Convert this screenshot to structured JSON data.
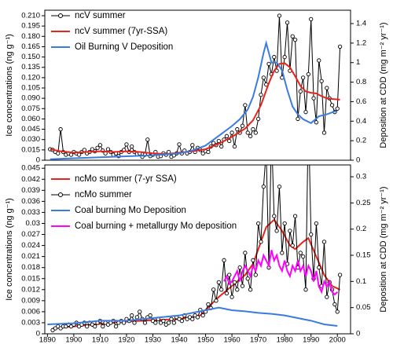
{
  "chart_data": [
    {
      "type": "line",
      "ylabel": "Ice concentrations (ng g⁻¹)",
      "y2label": "Deposition at CDD (mg m⁻² yr⁻¹)",
      "xlim": [
        1889,
        2005
      ],
      "ylim": [
        0,
        0.218
      ],
      "y2lim": [
        0,
        1.537
      ],
      "yticks": [
        0,
        0.015,
        {
          "value": 0.03,
          "label": "0.030"
        },
        0.045,
        {
          "value": 0.06,
          "label": "0.060"
        },
        0.075,
        {
          "value": 0.09,
          "label": "0.090"
        },
        0.105,
        {
          "value": 0.12,
          "label": "0.120"
        },
        0.135,
        {
          "value": 0.15,
          "label": "0.150"
        },
        0.165,
        {
          "value": 0.18,
          "label": "0.180"
        },
        0.195,
        {
          "value": 0.21,
          "label": "0.210"
        }
      ],
      "y2ticks": [
        0,
        0.2,
        0.4,
        0.6,
        0.8,
        1,
        1.2,
        1.4
      ],
      "legend": "upper left",
      "series": [
        {
          "name": "ncV summer",
          "color": "#000000",
          "marker": "circle",
          "x": [
            1891,
            1892,
            1893,
            1894,
            1895,
            1896,
            1897,
            1898,
            1899,
            1900,
            1901,
            1902,
            1903,
            1904,
            1905,
            1906,
            1907,
            1908,
            1909,
            1910,
            1911,
            1912,
            1913,
            1914,
            1915,
            1916,
            1917,
            1918,
            1919,
            1920,
            1921,
            1922,
            1923,
            1924,
            1925,
            1926,
            1927,
            1928,
            1929,
            1930,
            1931,
            1932,
            1933,
            1934,
            1935,
            1936,
            1937,
            1938,
            1939,
            1940,
            1941,
            1942,
            1943,
            1944,
            1945,
            1946,
            1947,
            1948,
            1949,
            1950,
            1951,
            1952,
            1953,
            1954,
            1955,
            1956,
            1957,
            1958,
            1959,
            1960,
            1961,
            1962,
            1963,
            1964,
            1965,
            1966,
            1967,
            1968,
            1969,
            1970,
            1971,
            1972,
            1973,
            1974,
            1975,
            1976,
            1977,
            1978,
            1979,
            1980,
            1981,
            1982,
            1983,
            1984,
            1985,
            1986,
            1987,
            1988,
            1989,
            1990,
            1991,
            1992,
            1993,
            1994,
            1995,
            1996,
            1997,
            1998,
            1999,
            2000,
            2001
          ],
          "values": [
            0.016,
            0.015,
            0.012,
            0.01,
            0.045,
            0.012,
            0.008,
            0.01,
            0.008,
            0.012,
            0.01,
            0.008,
            0.012,
            0.015,
            0.01,
            0.012,
            0.016,
            0.013,
            0.018,
            0.022,
            0.014,
            0.01,
            0.016,
            0.012,
            0.008,
            0.01,
            0.006,
            0.012,
            0.015,
            0.023,
            0.012,
            0.02,
            0.012,
            0.009,
            0.01,
            0.005,
            0.008,
            0.03,
            0.006,
            0.008,
            0.012,
            0.005,
            0.006,
            0.01,
            0.008,
            0.012,
            0.005,
            0.007,
            0.01,
            0.023,
            0.01,
            0.014,
            0.01,
            0.012,
            0.022,
            0.012,
            0.018,
            0.015,
            0.01,
            0.013,
            0.012,
            0.02,
            0.025,
            0.022,
            0.028,
            0.02,
            0.03,
            0.035,
            0.028,
            0.04,
            0.02,
            0.045,
            0.04,
            0.05,
            0.08,
            0.04,
            0.035,
            0.045,
            0.04,
            0.06,
            0.095,
            0.12,
            0.11,
            0.14,
            0.125,
            0.15,
            0.13,
            0.21,
            0.12,
            0.15,
            0.2,
            0.13,
            0.18,
            0.175,
            0.06,
            0.1,
            0.12,
            0.07,
            0.125,
            0.205,
            0.09,
            0.055,
            0.145,
            0.115,
            0.04,
            0.105,
            0.09,
            0.08,
            0.07,
            0.075,
            0.165
          ]
        },
        {
          "name": "ncV summer (7yr-SSA)",
          "color": "#e8231c",
          "x": [
            1891,
            1895,
            1900,
            1905,
            1910,
            1915,
            1920,
            1925,
            1930,
            1935,
            1940,
            1945,
            1950,
            1955,
            1960,
            1965,
            1968,
            1971,
            1974,
            1976,
            1978,
            1980,
            1982,
            1984,
            1986,
            1988,
            1990,
            1992,
            1994,
            1996,
            1998,
            2001
          ],
          "values": [
            0.016,
            0.013,
            0.011,
            0.012,
            0.013,
            0.012,
            0.013,
            0.012,
            0.01,
            0.009,
            0.011,
            0.013,
            0.016,
            0.024,
            0.034,
            0.046,
            0.058,
            0.08,
            0.112,
            0.13,
            0.14,
            0.141,
            0.135,
            0.122,
            0.108,
            0.1,
            0.098,
            0.097,
            0.093,
            0.09,
            0.089,
            0.088
          ]
        },
        {
          "name": "Oil Burning V Deposition",
          "color": "#3a7be0",
          "axis": "y2",
          "x": [
            1891,
            1900,
            1910,
            1920,
            1930,
            1940,
            1945,
            1950,
            1955,
            1960,
            1963,
            1966,
            1968,
            1970,
            1972,
            1973,
            1975,
            1977,
            1979,
            1981,
            1983,
            1985,
            1987,
            1990,
            1993,
            1996,
            1999,
            2000
          ],
          "values": [
            0.01,
            0.02,
            0.03,
            0.04,
            0.05,
            0.07,
            0.1,
            0.15,
            0.25,
            0.35,
            0.42,
            0.52,
            0.65,
            0.85,
            1.1,
            1.2,
            1.0,
            1.0,
            0.92,
            0.72,
            0.55,
            0.47,
            0.42,
            0.38,
            0.45,
            0.47,
            0.5,
            0.5
          ]
        }
      ]
    },
    {
      "type": "line",
      "ylabel": "Ice concentrations (ng g⁻¹)",
      "y2label": "Deposition at CDD (mg m⁻² yr⁻¹)",
      "xlim": [
        1889,
        2005
      ],
      "ylim": [
        0,
        0.0459
      ],
      "y2lim": [
        0,
        0.3226
      ],
      "xticks": [
        1890,
        1900,
        1910,
        1920,
        1930,
        1940,
        1950,
        1960,
        1970,
        1980,
        1990,
        2000
      ],
      "yticks": [
        0,
        0.003,
        0.006,
        0.009,
        0.012,
        0.015,
        0.018,
        0.021,
        0.024,
        0.027,
        0.03,
        0.033,
        0.036,
        0.039,
        0.042,
        0.045
      ],
      "y2ticks": [
        0,
        0.05,
        0.1,
        0.15,
        0.2,
        0.25,
        0.3
      ],
      "legend": "upper left",
      "series": [
        {
          "name": "ncMo summer (7-yr SSA)",
          "color": "#e8231c",
          "x": [
            1892,
            1900,
            1910,
            1920,
            1930,
            1940,
            1948,
            1950,
            1955,
            1960,
            1965,
            1968,
            1970,
            1973,
            1976,
            1979,
            1982,
            1984,
            1987,
            1989,
            1992,
            1995,
            1998,
            2001
          ],
          "values": [
            0.0015,
            0.002,
            0.0027,
            0.0033,
            0.0037,
            0.004,
            0.005,
            0.0065,
            0.01,
            0.013,
            0.016,
            0.019,
            0.023,
            0.029,
            0.031,
            0.028,
            0.024,
            0.023,
            0.025,
            0.026,
            0.021,
            0.016,
            0.013,
            0.012
          ]
        },
        {
          "name": "ncMo summer",
          "color": "#000000",
          "marker": "circle",
          "x": [
            1892,
            1893,
            1894,
            1895,
            1896,
            1897,
            1898,
            1899,
            1900,
            1901,
            1902,
            1903,
            1904,
            1905,
            1906,
            1907,
            1908,
            1909,
            1910,
            1911,
            1912,
            1913,
            1914,
            1915,
            1916,
            1917,
            1918,
            1919,
            1920,
            1921,
            1922,
            1923,
            1924,
            1925,
            1926,
            1927,
            1928,
            1929,
            1930,
            1931,
            1932,
            1933,
            1934,
            1935,
            1936,
            1937,
            1938,
            1939,
            1940,
            1941,
            1942,
            1943,
            1944,
            1945,
            1946,
            1947,
            1948,
            1949,
            1950,
            1951,
            1952,
            1953,
            1954,
            1955,
            1956,
            1957,
            1958,
            1959,
            1960,
            1961,
            1962,
            1963,
            1964,
            1965,
            1966,
            1967,
            1968,
            1969,
            1970,
            1971,
            1972,
            1973,
            1974,
            1975,
            1976,
            1977,
            1978,
            1979,
            1980,
            1981,
            1982,
            1983,
            1984,
            1985,
            1986,
            1987,
            1988,
            1989,
            1990,
            1991,
            1992,
            1993,
            1994,
            1995,
            1996,
            1997,
            1998,
            1999,
            2000,
            2001
          ],
          "values": [
            0.001,
            0.0015,
            0.002,
            0.0015,
            0.002,
            0.002,
            0.0025,
            0.002,
            0.0025,
            0.003,
            0.002,
            0.0025,
            0.003,
            0.002,
            0.003,
            0.0025,
            0.002,
            0.003,
            0.0035,
            0.002,
            0.003,
            0.0025,
            0.003,
            0.0035,
            0.002,
            0.003,
            0.0035,
            0.003,
            0.004,
            0.0035,
            0.005,
            0.003,
            0.0045,
            0.006,
            0.004,
            0.003,
            0.0045,
            0.005,
            0.0035,
            0.003,
            0.004,
            0.003,
            0.0035,
            0.0025,
            0.003,
            0.004,
            0.003,
            0.0045,
            0.004,
            0.0035,
            0.005,
            0.004,
            0.0045,
            0.004,
            0.005,
            0.0045,
            0.0065,
            0.005,
            0.006,
            0.008,
            0.007,
            0.012,
            0.009,
            0.014,
            0.012,
            0.02,
            0.011,
            0.016,
            0.01,
            0.014,
            0.012,
            0.018,
            0.013,
            0.022,
            0.015,
            0.012,
            0.02,
            0.016,
            0.03,
            0.025,
            0.04,
            0.05,
            0.018,
            0.055,
            0.032,
            0.028,
            0.04,
            0.022,
            0.03,
            0.019,
            0.028,
            0.024,
            0.032,
            0.018,
            0.022,
            0.021,
            0.012,
            0.06,
            0.027,
            0.015,
            0.03,
            0.018,
            0.013,
            0.025,
            0.01,
            0.014,
            0.012,
            0.008,
            0.006,
            0.016
          ]
        },
        {
          "name": "Coal burning Mo Deposition",
          "color": "#3a7be0",
          "axis": "y2",
          "x": [
            1890,
            1900,
            1910,
            1920,
            1930,
            1940,
            1950,
            1955,
            1960,
            1965,
            1970,
            1975,
            1980,
            1985,
            1990,
            1995,
            2000
          ],
          "values": [
            0.018,
            0.02,
            0.025,
            0.025,
            0.03,
            0.035,
            0.045,
            0.05,
            0.045,
            0.043,
            0.04,
            0.038,
            0.035,
            0.03,
            0.025,
            0.018,
            0.015
          ]
        },
        {
          "name": "Coal burning + metallurgy Mo deposition",
          "color": "#ff00ff",
          "axis": "y2",
          "x": [
            1957,
            1958,
            1959,
            1960,
            1961,
            1962,
            1963,
            1964,
            1965,
            1966,
            1967,
            1968,
            1969,
            1970,
            1971,
            1972,
            1973,
            1974,
            1975,
            1976,
            1977,
            1978,
            1979,
            1980,
            1981,
            1982,
            1983,
            1984,
            1985,
            1986,
            1987,
            1988,
            1989,
            1990,
            1991,
            1992,
            1993,
            1994,
            1995,
            1996,
            1997,
            1998,
            1999,
            2000
          ],
          "values": [
            0.1,
            0.11,
            0.095,
            0.1,
            0.11,
            0.12,
            0.1,
            0.12,
            0.13,
            0.12,
            0.11,
            0.13,
            0.12,
            0.14,
            0.13,
            0.15,
            0.14,
            0.13,
            0.16,
            0.14,
            0.15,
            0.13,
            0.12,
            0.14,
            0.12,
            0.11,
            0.13,
            0.12,
            0.14,
            0.12,
            0.13,
            0.11,
            0.13,
            0.12,
            0.1,
            0.12,
            0.09,
            0.08,
            0.1,
            0.09,
            0.1,
            0.08,
            0.075,
            0.08
          ]
        }
      ]
    }
  ]
}
